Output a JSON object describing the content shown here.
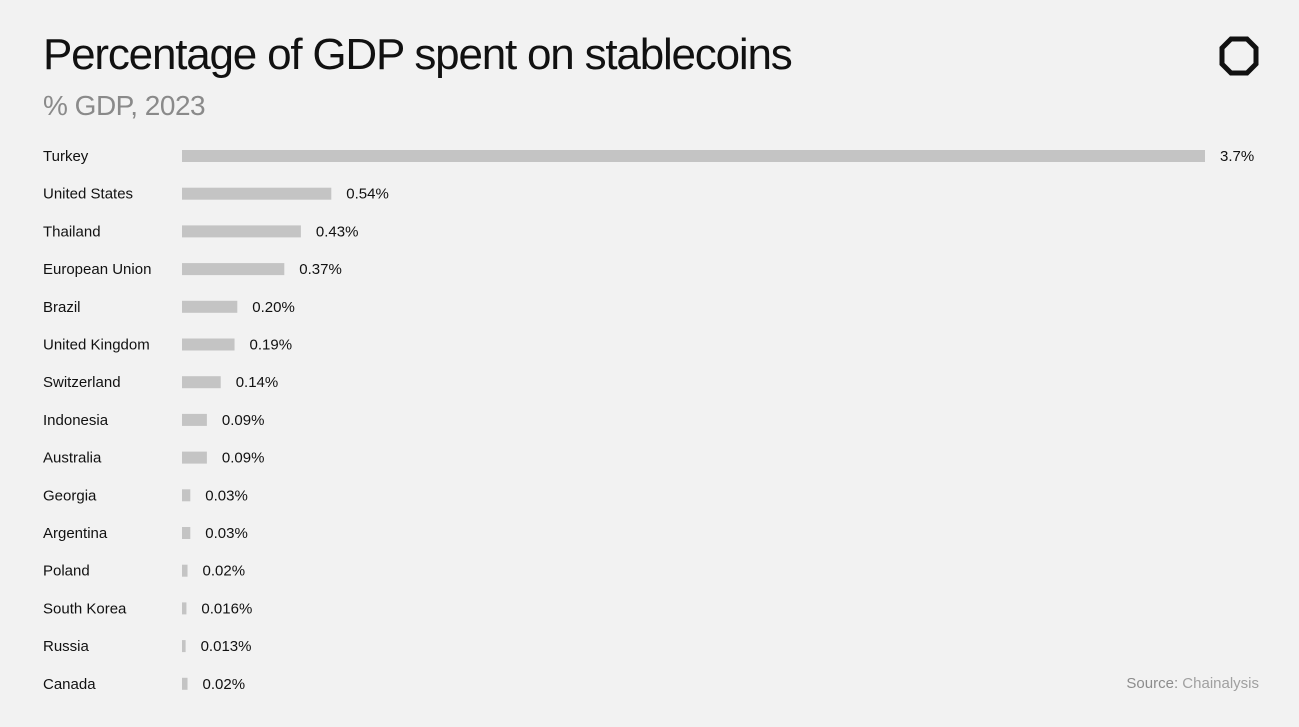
{
  "header": {
    "title": "Percentage of GDP spent on stablecoins",
    "subtitle": "% GDP, 2023"
  },
  "logo_icon": "octagon-logo-icon",
  "footer": {
    "source_label": "Source:",
    "source_value": "Chainalysis"
  },
  "colors": {
    "background": "#f2f2f2",
    "bar": "#c4c4c4",
    "text": "#111111",
    "subtitle": "#8a8a8a"
  },
  "chart_data": {
    "type": "bar",
    "orientation": "horizontal",
    "title": "Percentage of GDP spent on stablecoins",
    "subtitle": "% GDP, 2023",
    "categories": [
      "Turkey",
      "United States",
      "Thailand",
      "European Union",
      "Brazil",
      "United Kingdom",
      "Switzerland",
      "Indonesia",
      "Australia",
      "Georgia",
      "Argentina",
      "Poland",
      "South Korea",
      "Russia",
      "Canada"
    ],
    "values": [
      3.7,
      0.54,
      0.43,
      0.37,
      0.2,
      0.19,
      0.14,
      0.09,
      0.09,
      0.03,
      0.03,
      0.02,
      0.016,
      0.013,
      0.02
    ],
    "labels": [
      "3.7%",
      "0.54%",
      "0.43%",
      "0.37%",
      "0.20%",
      "0.19%",
      "0.14%",
      "0.09%",
      "0.09%",
      "0.03%",
      "0.03%",
      "0.02%",
      "0.016%",
      "0.013%",
      "0.02%"
    ],
    "xlim": [
      0,
      3.7
    ],
    "grid": false,
    "legend": "none"
  }
}
